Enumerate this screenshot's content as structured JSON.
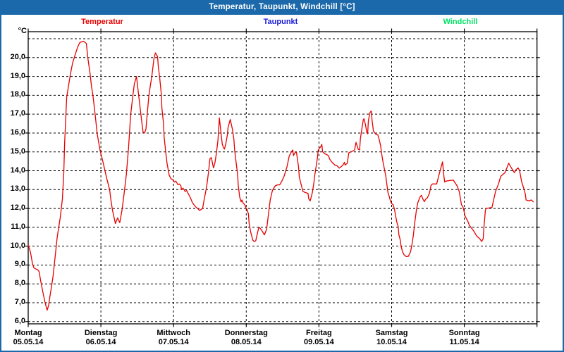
{
  "theme": {
    "titlebar_bg": "#1b69aa",
    "window_border": "#1b69aa",
    "plot_border": "#000000",
    "grid_color": "#000000",
    "background": "#ffffff"
  },
  "chart_data": {
    "type": "line",
    "title": "Temperatur, Taupunkt, Windchill [°C]",
    "grid": "dashed black, 1 °C horizontal steps, vertical line per day",
    "legend_position": "top row, spread across chart width",
    "y_axis": {
      "unit": "°C",
      "min": 6,
      "max": 21.4,
      "grid_lines_from": 6,
      "grid_lines_to": 21,
      "tick_values": [
        6,
        7,
        8,
        9,
        10,
        11,
        12,
        13,
        14,
        15,
        16,
        17,
        18,
        19,
        20
      ],
      "tick_labels": [
        "6,0",
        "7,0",
        "8,0",
        "9,0",
        "10,0",
        "11,0",
        "12,0",
        "13,0",
        "14,0",
        "15,0",
        "16,0",
        "17,0",
        "18,0",
        "19,0",
        "20,0"
      ]
    },
    "x_axis": {
      "unit": "days",
      "span_days": 7,
      "categories": [
        {
          "weekday": "Montag",
          "date": "05.05.14"
        },
        {
          "weekday": "Dienstag",
          "date": "06.05.14"
        },
        {
          "weekday": "Mittwoch",
          "date": "07.05.14"
        },
        {
          "weekday": "Donnerstag",
          "date": "08.05.14"
        },
        {
          "weekday": "Freitag",
          "date": "09.05.14"
        },
        {
          "weekday": "Samstag",
          "date": "10.05.14"
        },
        {
          "weekday": "Sonntag",
          "date": "11.05.14"
        }
      ]
    },
    "series": [
      {
        "name": "Temperatur",
        "color": "#e60000",
        "points": [
          [
            0.0,
            10.05
          ],
          [
            0.03,
            9.7
          ],
          [
            0.06,
            9.05
          ],
          [
            0.08,
            8.85
          ],
          [
            0.1,
            8.8
          ],
          [
            0.13,
            8.75
          ],
          [
            0.15,
            8.65
          ],
          [
            0.17,
            8.2
          ],
          [
            0.2,
            7.6
          ],
          [
            0.23,
            7.05
          ],
          [
            0.26,
            6.6
          ],
          [
            0.28,
            6.85
          ],
          [
            0.3,
            7.35
          ],
          [
            0.34,
            8.35
          ],
          [
            0.37,
            9.4
          ],
          [
            0.4,
            10.5
          ],
          [
            0.44,
            11.5
          ],
          [
            0.47,
            12.5
          ],
          [
            0.49,
            13.9
          ],
          [
            0.5,
            15.4
          ],
          [
            0.53,
            17.9
          ],
          [
            0.58,
            19.1
          ],
          [
            0.61,
            19.7
          ],
          [
            0.65,
            20.2
          ],
          [
            0.68,
            20.55
          ],
          [
            0.71,
            20.8
          ],
          [
            0.76,
            20.87
          ],
          [
            0.8,
            20.75
          ],
          [
            0.82,
            20.0
          ],
          [
            0.85,
            19.2
          ],
          [
            0.87,
            18.5
          ],
          [
            0.89,
            18.0
          ],
          [
            0.92,
            17.0
          ],
          [
            0.95,
            15.95
          ],
          [
            0.99,
            15.05
          ],
          [
            1.02,
            14.6
          ],
          [
            1.05,
            14.1
          ],
          [
            1.08,
            13.6
          ],
          [
            1.12,
            13.0
          ],
          [
            1.14,
            12.4
          ],
          [
            1.16,
            11.9
          ],
          [
            1.2,
            11.2
          ],
          [
            1.23,
            11.5
          ],
          [
            1.26,
            11.25
          ],
          [
            1.29,
            11.9
          ],
          [
            1.32,
            12.8
          ],
          [
            1.35,
            13.8
          ],
          [
            1.38,
            15.2
          ],
          [
            1.41,
            17.0
          ],
          [
            1.44,
            18.0
          ],
          [
            1.46,
            18.6
          ],
          [
            1.49,
            19.0
          ],
          [
            1.52,
            18.0
          ],
          [
            1.55,
            17.0
          ],
          [
            1.58,
            16.05
          ],
          [
            1.6,
            16.0
          ],
          [
            1.62,
            16.2
          ],
          [
            1.63,
            16.7
          ],
          [
            1.66,
            17.95
          ],
          [
            1.68,
            18.5
          ],
          [
            1.7,
            19.0
          ],
          [
            1.73,
            19.95
          ],
          [
            1.75,
            20.25
          ],
          [
            1.78,
            20.05
          ],
          [
            1.79,
            19.55
          ],
          [
            1.81,
            18.9
          ],
          [
            1.83,
            18.1
          ],
          [
            1.84,
            17.3
          ],
          [
            1.86,
            16.55
          ],
          [
            1.87,
            15.8
          ],
          [
            1.89,
            15.05
          ],
          [
            1.91,
            14.4
          ],
          [
            1.94,
            13.76
          ],
          [
            1.96,
            13.6
          ],
          [
            1.99,
            13.5
          ],
          [
            2.01,
            13.4
          ],
          [
            2.03,
            13.45
          ],
          [
            2.06,
            13.26
          ],
          [
            2.08,
            13.3
          ],
          [
            2.1,
            13.2
          ],
          [
            2.11,
            13.0
          ],
          [
            2.13,
            13.08
          ],
          [
            2.16,
            12.9
          ],
          [
            2.18,
            12.95
          ],
          [
            2.2,
            12.8
          ],
          [
            2.23,
            12.58
          ],
          [
            2.26,
            12.3
          ],
          [
            2.3,
            12.1
          ],
          [
            2.33,
            12.0
          ],
          [
            2.36,
            11.89
          ],
          [
            2.38,
            11.95
          ],
          [
            2.4,
            12.0
          ],
          [
            2.42,
            12.45
          ],
          [
            2.44,
            12.85
          ],
          [
            2.46,
            13.3
          ],
          [
            2.48,
            13.9
          ],
          [
            2.5,
            14.64
          ],
          [
            2.52,
            14.7
          ],
          [
            2.54,
            14.3
          ],
          [
            2.55,
            14.15
          ],
          [
            2.57,
            14.45
          ],
          [
            2.59,
            14.95
          ],
          [
            2.61,
            15.6
          ],
          [
            2.63,
            16.8
          ],
          [
            2.65,
            16.1
          ],
          [
            2.67,
            15.4
          ],
          [
            2.69,
            15.2
          ],
          [
            2.7,
            15.15
          ],
          [
            2.72,
            15.45
          ],
          [
            2.74,
            15.9
          ],
          [
            2.75,
            16.3
          ],
          [
            2.78,
            16.72
          ],
          [
            2.81,
            16.2
          ],
          [
            2.83,
            15.65
          ],
          [
            2.84,
            15.1
          ],
          [
            2.86,
            14.45
          ],
          [
            2.88,
            13.85
          ],
          [
            2.89,
            13.2
          ],
          [
            2.91,
            12.6
          ],
          [
            2.93,
            12.35
          ],
          [
            2.94,
            12.45
          ],
          [
            2.96,
            12.26
          ],
          [
            2.98,
            12.2
          ],
          [
            3.0,
            12.0
          ],
          [
            3.01,
            11.96
          ],
          [
            3.03,
            11.7
          ],
          [
            3.04,
            11.2
          ],
          [
            3.06,
            10.76
          ],
          [
            3.09,
            10.32
          ],
          [
            3.11,
            10.25
          ],
          [
            3.13,
            10.28
          ],
          [
            3.17,
            10.95
          ],
          [
            3.18,
            11.0
          ],
          [
            3.21,
            10.85
          ],
          [
            3.25,
            10.6
          ],
          [
            3.28,
            10.9
          ],
          [
            3.31,
            11.85
          ],
          [
            3.33,
            12.45
          ],
          [
            3.36,
            12.95
          ],
          [
            3.4,
            13.2
          ],
          [
            3.43,
            13.25
          ],
          [
            3.46,
            13.25
          ],
          [
            3.49,
            13.45
          ],
          [
            3.52,
            13.7
          ],
          [
            3.56,
            14.2
          ],
          [
            3.59,
            14.76
          ],
          [
            3.62,
            15.0
          ],
          [
            3.64,
            15.1
          ],
          [
            3.65,
            14.8
          ],
          [
            3.67,
            14.95
          ],
          [
            3.69,
            15.0
          ],
          [
            3.72,
            14.2
          ],
          [
            3.73,
            13.65
          ],
          [
            3.75,
            13.35
          ],
          [
            3.78,
            12.9
          ],
          [
            3.81,
            12.85
          ],
          [
            3.85,
            12.8
          ],
          [
            3.86,
            12.5
          ],
          [
            3.88,
            12.4
          ],
          [
            3.91,
            12.85
          ],
          [
            3.93,
            13.35
          ],
          [
            3.94,
            13.7
          ],
          [
            3.96,
            14.2
          ],
          [
            3.98,
            14.7
          ],
          [
            3.99,
            15.1
          ],
          [
            4.01,
            15.2
          ],
          [
            4.03,
            15.3
          ],
          [
            4.04,
            15.4
          ],
          [
            4.05,
            15.0
          ],
          [
            4.08,
            14.9
          ],
          [
            4.11,
            14.85
          ],
          [
            4.13,
            14.8
          ],
          [
            4.15,
            14.6
          ],
          [
            4.18,
            14.45
          ],
          [
            4.22,
            14.3
          ],
          [
            4.25,
            14.26
          ],
          [
            4.28,
            14.14
          ],
          [
            4.32,
            14.26
          ],
          [
            4.33,
            14.3
          ],
          [
            4.35,
            14.45
          ],
          [
            4.36,
            14.3
          ],
          [
            4.39,
            14.4
          ],
          [
            4.41,
            14.95
          ],
          [
            4.44,
            15.0
          ],
          [
            4.47,
            15.05
          ],
          [
            4.49,
            15.1
          ],
          [
            4.51,
            15.5
          ],
          [
            4.54,
            15.14
          ],
          [
            4.56,
            15.1
          ],
          [
            4.57,
            15.7
          ],
          [
            4.59,
            16.2
          ],
          [
            4.61,
            16.7
          ],
          [
            4.62,
            16.76
          ],
          [
            4.64,
            16.45
          ],
          [
            4.66,
            16.0
          ],
          [
            4.67,
            15.96
          ],
          [
            4.68,
            16.64
          ],
          [
            4.7,
            17.07
          ],
          [
            4.72,
            17.17
          ],
          [
            4.73,
            16.7
          ],
          [
            4.75,
            16.1
          ],
          [
            4.78,
            15.95
          ],
          [
            4.81,
            15.9
          ],
          [
            4.83,
            15.64
          ],
          [
            4.85,
            15.3
          ],
          [
            4.86,
            14.96
          ],
          [
            4.88,
            14.5
          ],
          [
            4.9,
            14.1
          ],
          [
            4.92,
            13.7
          ],
          [
            4.93,
            13.4
          ],
          [
            4.95,
            12.84
          ],
          [
            4.97,
            12.6
          ],
          [
            4.98,
            12.45
          ],
          [
            5.0,
            12.26
          ],
          [
            5.02,
            12.2
          ],
          [
            5.04,
            11.96
          ],
          [
            5.05,
            11.7
          ],
          [
            5.07,
            11.3
          ],
          [
            5.09,
            11.03
          ],
          [
            5.1,
            10.6
          ],
          [
            5.12,
            10.3
          ],
          [
            5.13,
            10.0
          ],
          [
            5.15,
            9.7
          ],
          [
            5.17,
            9.55
          ],
          [
            5.2,
            9.45
          ],
          [
            5.23,
            9.46
          ],
          [
            5.26,
            9.7
          ],
          [
            5.28,
            10.1
          ],
          [
            5.3,
            10.6
          ],
          [
            5.32,
            11.3
          ],
          [
            5.34,
            11.9
          ],
          [
            5.36,
            12.3
          ],
          [
            5.39,
            12.6
          ],
          [
            5.41,
            12.7
          ],
          [
            5.43,
            12.5
          ],
          [
            5.45,
            12.36
          ],
          [
            5.47,
            12.5
          ],
          [
            5.49,
            12.55
          ],
          [
            5.52,
            12.8
          ],
          [
            5.54,
            13.2
          ],
          [
            5.56,
            13.3
          ],
          [
            5.62,
            13.3
          ],
          [
            5.66,
            13.9
          ],
          [
            5.7,
            14.47
          ],
          [
            5.72,
            13.7
          ],
          [
            5.73,
            13.4
          ],
          [
            5.75,
            13.45
          ],
          [
            5.8,
            13.48
          ],
          [
            5.85,
            13.5
          ],
          [
            5.9,
            13.2
          ],
          [
            5.93,
            12.9
          ],
          [
            5.96,
            12.2
          ],
          [
            5.98,
            12.1
          ],
          [
            5.99,
            11.96
          ],
          [
            6.01,
            11.6
          ],
          [
            6.05,
            11.3
          ],
          [
            6.07,
            11.1
          ],
          [
            6.09,
            11.0
          ],
          [
            6.13,
            10.8
          ],
          [
            6.16,
            10.6
          ],
          [
            6.18,
            10.5
          ],
          [
            6.21,
            10.4
          ],
          [
            6.24,
            10.25
          ],
          [
            6.26,
            10.4
          ],
          [
            6.27,
            11.0
          ],
          [
            6.29,
            11.9
          ],
          [
            6.3,
            12.0
          ],
          [
            6.38,
            12.05
          ],
          [
            6.43,
            12.9
          ],
          [
            6.47,
            13.3
          ],
          [
            6.5,
            13.7
          ],
          [
            6.53,
            13.8
          ],
          [
            6.56,
            13.9
          ],
          [
            6.6,
            14.3
          ],
          [
            6.61,
            14.4
          ],
          [
            6.64,
            14.2
          ],
          [
            6.68,
            13.95
          ],
          [
            6.69,
            13.9
          ],
          [
            6.71,
            14.05
          ],
          [
            6.74,
            14.15
          ],
          [
            6.76,
            14.0
          ],
          [
            6.79,
            13.4
          ],
          [
            6.82,
            13.05
          ],
          [
            6.84,
            12.75
          ],
          [
            6.85,
            12.45
          ],
          [
            6.89,
            12.4
          ],
          [
            6.92,
            12.45
          ],
          [
            6.95,
            12.35
          ]
        ]
      },
      {
        "name": "Taupunkt",
        "color": "#1a1ad6",
        "points": []
      },
      {
        "name": "Windchill",
        "color": "#00e564",
        "points": []
      }
    ]
  }
}
